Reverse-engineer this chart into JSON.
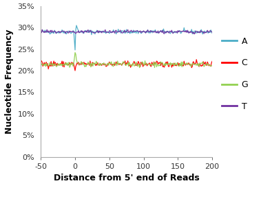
{
  "xlabel": "Distance from 5' end of Reads",
  "ylabel": "Nucleotide Frequency",
  "xlim": [
    -50,
    200
  ],
  "ylim": [
    0,
    0.35
  ],
  "yticks": [
    0,
    0.05,
    0.1,
    0.15,
    0.2,
    0.25,
    0.3,
    0.35
  ],
  "ytick_labels": [
    "0%",
    "5%",
    "10%",
    "15%",
    "20%",
    "25%",
    "30%",
    "35%"
  ],
  "xticks": [
    -50,
    0,
    50,
    100,
    150,
    200
  ],
  "A_baseline": 0.29,
  "C_baseline": 0.215,
  "G_baseline": 0.215,
  "T_baseline": 0.29,
  "legend_labels": [
    "A",
    "C",
    "G",
    "T"
  ],
  "legend_colors": [
    "#4BACC6",
    "#FF0000",
    "#92D050",
    "#7030A0"
  ],
  "background_color": "#FFFFFF"
}
